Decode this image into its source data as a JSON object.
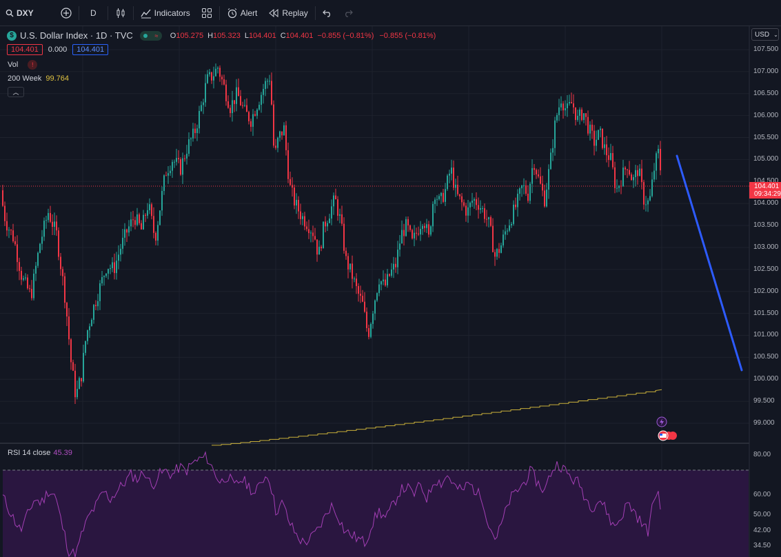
{
  "toolbar": {
    "symbol": "DXY",
    "interval": "D",
    "indicators_label": "Indicators",
    "alert_label": "Alert",
    "replay_label": "Replay"
  },
  "legend": {
    "symbol_title": "U.S. Dollar Index · 1D · TVC",
    "open_label": "O",
    "open": "105.275",
    "high_label": "H",
    "high": "105.323",
    "low_label": "L",
    "low": "104.401",
    "close_label": "C",
    "close": "104.401",
    "change": "−0.855 (−0.81%)",
    "change2": "−0.855 (−0.81%)",
    "bid": "104.401",
    "spread": "0.000",
    "ask": "104.401"
  },
  "indicators": {
    "vol_label": "Vol",
    "ma_label": "200 Week",
    "ma_value": "99.764",
    "rsi_label": "RSI 14 close",
    "rsi_value": "45.39"
  },
  "price_axis": {
    "currency": "USD",
    "labels": [
      "107.500",
      "107.000",
      "106.500",
      "106.000",
      "105.500",
      "105.000",
      "104.500",
      "104.000",
      "103.500",
      "103.000",
      "102.500",
      "102.000",
      "101.500",
      "101.000",
      "100.500",
      "100.000",
      "99.500",
      "99.000"
    ],
    "last_price": "104.401",
    "countdown": "09:34:29"
  },
  "rsi_axis": {
    "labels": [
      "80.00",
      "60.00",
      "50.00",
      "42.00",
      "34.50"
    ]
  },
  "colors": {
    "up": "#26a69a",
    "down": "#f23645",
    "ma_line": "#c9b03a",
    "rsi_line": "#a43fb5",
    "drawing": "#2d5bff"
  },
  "chart_data": {
    "type": "candlestick",
    "series": [
      {
        "name": "",
        "price_path": [
          [
            0,
            104.3
          ],
          [
            8,
            103.6
          ],
          [
            20,
            103.2
          ],
          [
            32,
            102.3
          ],
          [
            45,
            101.9
          ],
          [
            58,
            103.1
          ],
          [
            70,
            103.8
          ],
          [
            82,
            103.3
          ],
          [
            95,
            101.8
          ],
          [
            103,
            100.4
          ],
          [
            110,
            99.6
          ],
          [
            118,
            100.1
          ],
          [
            125,
            101.0
          ],
          [
            135,
            101.6
          ],
          [
            145,
            102.1
          ],
          [
            155,
            102.6
          ],
          [
            165,
            102.5
          ],
          [
            175,
            103.0
          ],
          [
            185,
            103.4
          ],
          [
            195,
            103.7
          ],
          [
            205,
            103.4
          ],
          [
            215,
            104.0
          ],
          [
            225,
            103.2
          ],
          [
            232,
            103.9
          ],
          [
            240,
            104.7
          ],
          [
            250,
            105.0
          ],
          [
            262,
            104.8
          ],
          [
            272,
            105.3
          ],
          [
            282,
            105.6
          ],
          [
            292,
            106.2
          ],
          [
            300,
            106.8
          ],
          [
            308,
            106.9
          ],
          [
            316,
            107.1
          ],
          [
            324,
            106.7
          ],
          [
            334,
            106.2
          ],
          [
            344,
            106.5
          ],
          [
            354,
            106.1
          ],
          [
            364,
            105.9
          ],
          [
            374,
            106.3
          ],
          [
            384,
            106.7
          ],
          [
            392,
            106.9
          ],
          [
            398,
            105.0
          ],
          [
            404,
            105.5
          ],
          [
            412,
            105.7
          ],
          [
            420,
            104.4
          ],
          [
            428,
            104.0
          ],
          [
            438,
            103.7
          ],
          [
            448,
            103.5
          ],
          [
            456,
            103.3
          ],
          [
            462,
            102.8
          ],
          [
            470,
            103.5
          ],
          [
            478,
            103.8
          ],
          [
            486,
            104.1
          ],
          [
            494,
            103.6
          ],
          [
            502,
            102.7
          ],
          [
            510,
            102.4
          ],
          [
            518,
            102.0
          ],
          [
            526,
            101.7
          ],
          [
            534,
            101.0
          ],
          [
            542,
            101.7
          ],
          [
            550,
            102.3
          ],
          [
            558,
            102.1
          ],
          [
            566,
            102.4
          ],
          [
            574,
            102.6
          ],
          [
            582,
            103.3
          ],
          [
            590,
            103.5
          ],
          [
            598,
            103.1
          ],
          [
            606,
            103.4
          ],
          [
            614,
            103.7
          ],
          [
            622,
            103.2
          ],
          [
            630,
            104.3
          ],
          [
            638,
            104.0
          ],
          [
            646,
            104.3
          ],
          [
            654,
            104.8
          ],
          [
            662,
            104.2
          ],
          [
            670,
            104.0
          ],
          [
            678,
            103.8
          ],
          [
            686,
            104.1
          ],
          [
            694,
            104.0
          ],
          [
            702,
            103.8
          ],
          [
            710,
            103.5
          ],
          [
            718,
            102.8
          ],
          [
            726,
            103.0
          ],
          [
            734,
            103.4
          ],
          [
            742,
            103.7
          ],
          [
            750,
            104.0
          ],
          [
            758,
            104.4
          ],
          [
            766,
            104.2
          ],
          [
            774,
            105.0
          ],
          [
            782,
            104.5
          ],
          [
            790,
            104.1
          ],
          [
            798,
            104.9
          ],
          [
            806,
            105.9
          ],
          [
            814,
            106.4
          ],
          [
            822,
            106.1
          ],
          [
            830,
            106.3
          ],
          [
            838,
            105.9
          ],
          [
            846,
            106.1
          ],
          [
            854,
            105.7
          ],
          [
            862,
            105.4
          ],
          [
            870,
            105.6
          ],
          [
            878,
            105.2
          ],
          [
            886,
            105.0
          ],
          [
            894,
            104.3
          ],
          [
            902,
            104.6
          ],
          [
            910,
            104.9
          ],
          [
            918,
            104.5
          ],
          [
            926,
            104.8
          ],
          [
            934,
            104.1
          ],
          [
            942,
            104.0
          ],
          [
            950,
            104.9
          ],
          [
            956,
            105.2
          ],
          [
            960,
            104.4
          ]
        ]
      },
      {
        "name": "200 Week",
        "ma_start": 98.5,
        "ma_end": 99.764
      },
      {
        "name": "RSI 14 close",
        "rsi_path": [
          [
            0,
            62
          ],
          [
            10,
            55
          ],
          [
            20,
            48
          ],
          [
            30,
            42
          ],
          [
            40,
            50
          ],
          [
            50,
            58
          ],
          [
            60,
            56
          ],
          [
            70,
            62
          ],
          [
            80,
            60
          ],
          [
            90,
            45
          ],
          [
            100,
            32
          ],
          [
            110,
            30
          ],
          [
            120,
            42
          ],
          [
            130,
            50
          ],
          [
            140,
            55
          ],
          [
            150,
            62
          ],
          [
            160,
            58
          ],
          [
            170,
            62
          ],
          [
            180,
            66
          ],
          [
            190,
            70
          ],
          [
            200,
            68
          ],
          [
            210,
            72
          ],
          [
            220,
            64
          ],
          [
            230,
            70
          ],
          [
            240,
            72
          ],
          [
            250,
            70
          ],
          [
            260,
            74
          ],
          [
            270,
            72
          ],
          [
            280,
            76
          ],
          [
            290,
            78
          ],
          [
            300,
            79
          ],
          [
            310,
            72
          ],
          [
            320,
            66
          ],
          [
            330,
            70
          ],
          [
            340,
            64
          ],
          [
            350,
            68
          ],
          [
            360,
            65
          ],
          [
            370,
            60
          ],
          [
            380,
            68
          ],
          [
            390,
            70
          ],
          [
            400,
            52
          ],
          [
            410,
            56
          ],
          [
            420,
            46
          ],
          [
            430,
            40
          ],
          [
            440,
            36
          ],
          [
            450,
            38
          ],
          [
            460,
            42
          ],
          [
            470,
            48
          ],
          [
            480,
            55
          ],
          [
            490,
            50
          ],
          [
            500,
            42
          ],
          [
            510,
            40
          ],
          [
            520,
            38
          ],
          [
            530,
            36
          ],
          [
            540,
            46
          ],
          [
            550,
            52
          ],
          [
            560,
            48
          ],
          [
            570,
            55
          ],
          [
            580,
            62
          ],
          [
            590,
            64
          ],
          [
            600,
            60
          ],
          [
            610,
            65
          ],
          [
            620,
            58
          ],
          [
            630,
            68
          ],
          [
            640,
            66
          ],
          [
            650,
            70
          ],
          [
            660,
            64
          ],
          [
            670,
            62
          ],
          [
            680,
            66
          ],
          [
            690,
            62
          ],
          [
            700,
            58
          ],
          [
            710,
            44
          ],
          [
            720,
            38
          ],
          [
            730,
            48
          ],
          [
            740,
            58
          ],
          [
            750,
            62
          ],
          [
            760,
            66
          ],
          [
            770,
            72
          ],
          [
            780,
            66
          ],
          [
            790,
            62
          ],
          [
            800,
            72
          ],
          [
            810,
            76
          ],
          [
            820,
            72
          ],
          [
            830,
            68
          ],
          [
            840,
            66
          ],
          [
            850,
            58
          ],
          [
            860,
            54
          ],
          [
            870,
            58
          ],
          [
            880,
            52
          ],
          [
            890,
            44
          ],
          [
            900,
            48
          ],
          [
            910,
            56
          ],
          [
            920,
            52
          ],
          [
            930,
            46
          ],
          [
            940,
            42
          ],
          [
            950,
            60
          ],
          [
            955,
            62
          ],
          [
            960,
            45
          ]
        ]
      }
    ],
    "ylim": [
      98.6,
      107.8
    ],
    "rsi_ylim": [
      30,
      84
    ]
  }
}
